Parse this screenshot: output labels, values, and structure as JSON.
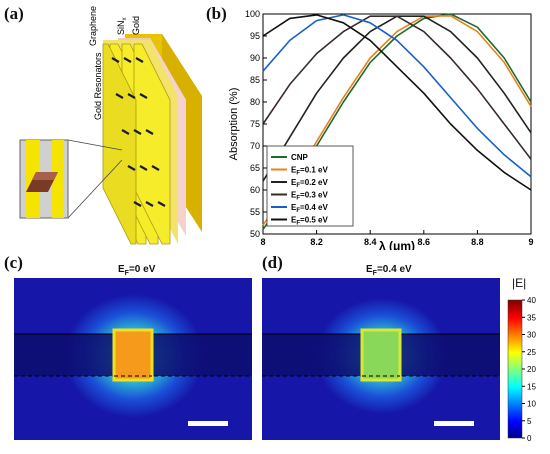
{
  "labels": {
    "a": "(a)",
    "b": "(b)",
    "c": "(c)",
    "d": "(d)"
  },
  "panel_a": {
    "layer_labels": [
      "Graphene",
      "SiN",
      "Gold"
    ],
    "sin_subscript": "x",
    "resonator_label": "Gold Resonators"
  },
  "chart_data": {
    "type": "line",
    "xlabel": "λ (μm)",
    "ylabel": "Absorption (%)",
    "xlim": [
      8,
      9
    ],
    "ylim": [
      50,
      100
    ],
    "x_ticks": [
      "8",
      "8.2",
      "8.4",
      "8.6",
      "8.8",
      "9"
    ],
    "y_ticks": [
      "50",
      "55",
      "60",
      "65",
      "70",
      "75",
      "80",
      "85",
      "90",
      "95",
      "100"
    ],
    "x": [
      8.0,
      8.1,
      8.2,
      8.3,
      8.4,
      8.5,
      8.6,
      8.7,
      8.8,
      8.9,
      9.0
    ],
    "legend_position": "bottom-left",
    "series": [
      {
        "name": "CNP",
        "color": "#1f6b2a",
        "values": [
          51,
          60,
          70,
          80,
          89,
          95,
          99,
          100,
          97,
          90,
          80
        ]
      },
      {
        "name": "E_F=0.1 eV",
        "color": "#e8821e",
        "values": [
          52,
          61,
          71,
          81,
          90,
          96,
          99.5,
          99.6,
          96,
          89,
          79
        ]
      },
      {
        "name": "E_F=0.2 eV",
        "color": "#222222",
        "values": [
          62,
          72,
          82,
          90,
          96,
          99.5,
          99.5,
          96,
          90,
          82,
          73
        ]
      },
      {
        "name": "E_F=0.3 eV",
        "color": "#3a2a2a",
        "values": [
          75,
          84,
          91,
          96,
          99.5,
          99.5,
          96,
          90,
          83,
          75,
          67
        ]
      },
      {
        "name": "E_F=0.4 eV",
        "color": "#1a5fc8",
        "values": [
          87,
          94,
          98.5,
          99.8,
          98,
          94,
          88,
          81,
          74,
          68,
          63
        ]
      },
      {
        "name": "E_F=0.5 eV",
        "color": "#111111",
        "values": [
          95,
          99,
          99.8,
          98,
          94,
          88,
          82,
          75,
          69,
          64,
          60
        ]
      }
    ]
  },
  "field_maps": {
    "left_title": "E",
    "left_sub": "F",
    "left_value": "=0 eV",
    "right_title": "E",
    "right_sub": "F",
    "right_value": "=0.4 eV",
    "left_core_color": "#f59a1a",
    "right_core_color": "#8ad85a",
    "background_color": "#1616a8",
    "stripe_color": "#0d0d6e"
  },
  "colorbar": {
    "title": "|E|",
    "ticks": [
      "0",
      "5",
      "10",
      "15",
      "20",
      "25",
      "30",
      "35",
      "40"
    ]
  }
}
